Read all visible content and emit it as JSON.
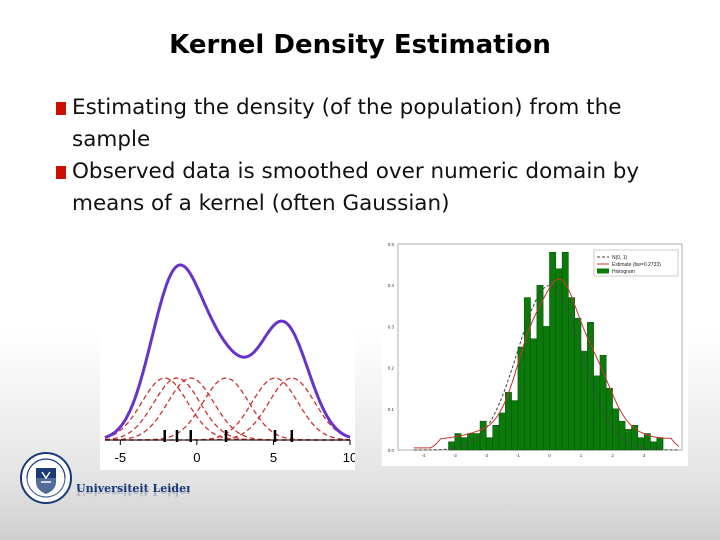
{
  "slide": {
    "title": "Kernel Density Estimation",
    "bullets": [
      "Estimating the density (of the population) from the sample",
      "Observed data is smoothed over numeric domain by means of a kernel (often Gaussian)"
    ]
  },
  "university": {
    "name": "Universiteit Leiden"
  },
  "colors": {
    "bullet": "#cc1100",
    "kde": "#6633cc",
    "kernel": "#cc3333",
    "histogram": "#0a7a0a"
  },
  "chart_data": [
    {
      "type": "line",
      "xticks": [
        "-5",
        "0",
        "5",
        "10"
      ],
      "xlim": [
        -6,
        10
      ],
      "observations": [
        -2.1,
        -1.3,
        -0.4,
        1.9,
        5.1,
        6.2
      ],
      "kernel_bandwidth": 1.5
    },
    {
      "type": "bar",
      "xticks": [
        "-4",
        "-3",
        "-2",
        "-1",
        "0",
        "1",
        "2",
        "3"
      ],
      "yticks": [
        "0.0",
        "0.1",
        "0.2",
        "0.3",
        "0.4",
        "0.5"
      ],
      "ylim": [
        0,
        0.5
      ],
      "bin_edges_start": -3.2,
      "bin_width": 0.2,
      "values": [
        0.02,
        0.04,
        0.03,
        0.04,
        0.04,
        0.07,
        0.03,
        0.06,
        0.09,
        0.14,
        0.12,
        0.25,
        0.37,
        0.27,
        0.4,
        0.3,
        0.48,
        0.44,
        0.48,
        0.37,
        0.32,
        0.24,
        0.31,
        0.18,
        0.23,
        0.15,
        0.1,
        0.07,
        0.05,
        0.06,
        0.03,
        0.04,
        0.02,
        0.03
      ],
      "legend": [
        "N(0, 1)",
        "Estimate (bw=0.2733)",
        "Histogram"
      ],
      "legend_position": "top-right"
    }
  ]
}
